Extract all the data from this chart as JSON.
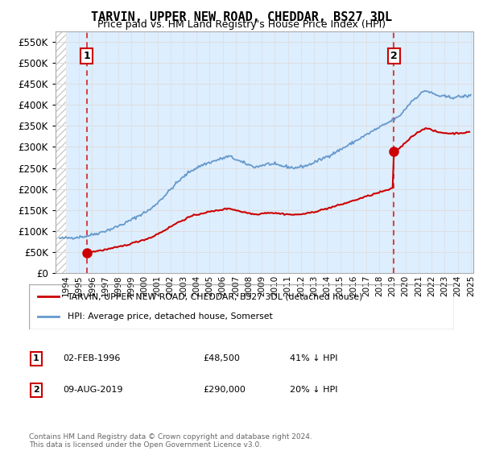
{
  "title": "TARVIN, UPPER NEW ROAD, CHEDDAR, BS27 3DL",
  "subtitle": "Price paid vs. HM Land Registry's House Price Index (HPI)",
  "ylim": [
    0,
    575000
  ],
  "yticks": [
    0,
    50000,
    100000,
    150000,
    200000,
    250000,
    300000,
    350000,
    400000,
    450000,
    500000,
    550000
  ],
  "xlim_start": 1993.7,
  "xlim_end": 2025.7,
  "sale1_x": 1996.09,
  "sale1_y": 48500,
  "sale2_x": 2019.6,
  "sale2_y": 290000,
  "sale1_label": "1",
  "sale2_label": "2",
  "sale_color": "#cc0000",
  "hpi_color": "#6699cc",
  "legend_sale": "TARVIN, UPPER NEW ROAD, CHEDDAR, BS27 3DL (detached house)",
  "legend_hpi": "HPI: Average price, detached house, Somerset",
  "ann1_date": "02-FEB-1996",
  "ann1_price": "£48,500",
  "ann1_hpi": "41% ↓ HPI",
  "ann2_date": "09-AUG-2019",
  "ann2_price": "£290,000",
  "ann2_hpi": "20% ↓ HPI",
  "footer": "Contains HM Land Registry data © Crown copyright and database right 2024.\nThis data is licensed under the Open Government Licence v3.0.",
  "grid_color": "#dddddd",
  "plot_bg": "#ddeeff",
  "hatch_color": "#cccccc"
}
